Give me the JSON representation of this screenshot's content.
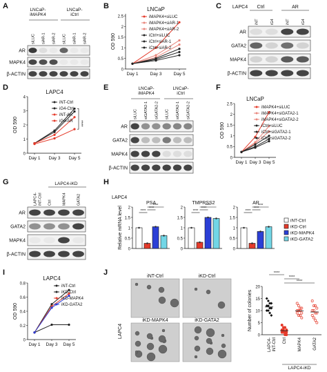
{
  "panel_letters": [
    "A",
    "B",
    "C",
    "D",
    "E",
    "F",
    "G",
    "H",
    "I",
    "J"
  ],
  "blot_labels": {
    "beta_actin": "β-ACTIN",
    "AR": "AR",
    "MAPK4": "MAPK4",
    "GATA2": "GATA2"
  },
  "panel_a": {
    "groups": [
      "LNCaP-\niMAPK4",
      "LNCaP-\niCtrl"
    ],
    "lanes": [
      "siLUC",
      "siAR-1",
      "siAR-2",
      "siLUC",
      "siAR-1",
      "siAR-2"
    ],
    "rows": [
      "AR",
      "MAPK4",
      "β-ACTIN"
    ]
  },
  "panel_c": {
    "cell": "LAPC4",
    "groups": [
      "Ctrl",
      "AR"
    ],
    "lanes": [
      "iNT",
      "iG4",
      "iNT",
      "iG4"
    ],
    "rows": [
      "AR",
      "GATA2",
      "MAPK4",
      "β-ACTIN"
    ]
  },
  "panel_e": {
    "groups": [
      "LNCaP-\niMAPK4",
      "LNCaP-\niCtrl"
    ],
    "lanes": [
      "siLUC",
      "siGATA2-1",
      "siGATA2-2",
      "siLUC",
      "siGATA2-1",
      "siGATA2-2"
    ],
    "rows": [
      "AR",
      "GATA2",
      "MAPK4",
      "β-ACTIN"
    ]
  },
  "panel_g": {
    "group": "LAPC4-iKD",
    "lanes": [
      "LAPC4-\niNT-Ctrl",
      "Ctrl",
      "MAPK4",
      "GATA2"
    ],
    "rows": [
      "AR",
      "GATA2",
      "MAPK4",
      "β-ACTIN"
    ]
  },
  "panel_j": {
    "images": [
      "iNT-Ctrl",
      "iKD-Ctrl",
      "iKD-MAPK4",
      "iKD-GATA2"
    ],
    "side_label": "LAPC4",
    "sig": [
      "****",
      "****",
      "****",
      "****"
    ]
  },
  "chart_data": [
    {
      "panel": "B",
      "type": "line",
      "title": "LNCaP",
      "ylabel": "OD 590",
      "categories": [
        "Day 1",
        "Day 3",
        "Day 5"
      ],
      "ylim": [
        0,
        2.6
      ],
      "yticks": [
        0,
        0.5,
        1.0,
        1.5,
        2.0,
        2.5
      ],
      "series": [
        {
          "name": "iMAPK4+siLUC",
          "color": "#e53a2a",
          "values": [
            0.25,
            1.0,
            2.2
          ]
        },
        {
          "name": "iMAPK4+siAR-1",
          "color": "#e8867c",
          "values": [
            0.25,
            0.65,
            1.35
          ]
        },
        {
          "name": "iMAPK4+siAR-2",
          "color": "#e8867c",
          "values": [
            0.25,
            0.55,
            1.15
          ]
        },
        {
          "name": "iCtrl+siLUC",
          "color": "#222222",
          "values": [
            0.25,
            0.5,
            0.95
          ]
        },
        {
          "name": "iCtrl+siAR-1",
          "color": "#222222",
          "values": [
            0.25,
            0.45,
            0.8
          ]
        },
        {
          "name": "iCtrl+siAR-2",
          "color": "#222222",
          "values": [
            0.25,
            0.4,
            0.65
          ]
        }
      ]
    },
    {
      "panel": "D",
      "type": "line",
      "title": "LAPC4",
      "ylabel": "OD 590",
      "categories": [
        "Day 1",
        "Day 3",
        "Day 5"
      ],
      "ylim": [
        0,
        4
      ],
      "yticks": [
        0,
        1,
        2,
        3,
        4
      ],
      "significance": "****",
      "series": [
        {
          "name": "iNT-Ctrl",
          "color": "#222222",
          "values": [
            0.7,
            1.6,
            3.15
          ]
        },
        {
          "name": "iG4-Ctrl",
          "color": "#222222",
          "values": [
            0.7,
            1.5,
            2.95
          ]
        },
        {
          "name": "iNT-AR",
          "color": "#e53a2a",
          "values": [
            0.7,
            1.3,
            2.55
          ]
        },
        {
          "name": "iG4-AR",
          "color": "#e53a2a",
          "values": [
            0.65,
            1.05,
            1.7
          ]
        }
      ]
    },
    {
      "panel": "F",
      "type": "line",
      "title": "LNCaP",
      "ylabel": "OD 590",
      "categories": [
        "Day 1",
        "Day 3",
        "Day 5"
      ],
      "ylim": [
        0,
        2.5
      ],
      "yticks": [
        0,
        0.5,
        1.0,
        1.5,
        2.0,
        2.5
      ],
      "series": [
        {
          "name": "iMAPK4+siLUC",
          "color": "#e53a2a",
          "values": [
            0.25,
            0.95,
            2.1
          ]
        },
        {
          "name": "iMAPK4+siGATA2-1",
          "color": "#e8867c",
          "values": [
            0.25,
            0.7,
            1.45
          ]
        },
        {
          "name": "iMAPK4+siGATA2-2",
          "color": "#e8867c",
          "values": [
            0.25,
            0.65,
            1.2
          ]
        },
        {
          "name": "iCtrl+siLUC",
          "color": "#222222",
          "values": [
            0.25,
            0.6,
            1.0
          ]
        },
        {
          "name": "iCtrl+siGATA2-1",
          "color": "#222222",
          "values": [
            0.25,
            0.5,
            0.85
          ]
        },
        {
          "name": "iCtrl+siGATA2-2",
          "color": "#222222",
          "values": [
            0.25,
            0.45,
            0.75
          ]
        }
      ]
    },
    {
      "panel": "H",
      "type": "bar",
      "title": "LAPC4",
      "ylabel": "Relative mRNA level",
      "ylim": [
        0,
        2.0
      ],
      "yticks": [
        0,
        0.5,
        1.0,
        1.5,
        2.0
      ],
      "groups": [
        "PSA",
        "TMPRSS2",
        "AR"
      ],
      "series": [
        {
          "name": "iNT-Ctrl",
          "color": "#ffffff",
          "values": [
            1.0,
            1.0,
            1.0
          ]
        },
        {
          "name": "iKD-Ctrl",
          "color": "#e53a2a",
          "values": [
            0.25,
            0.3,
            0.25
          ]
        },
        {
          "name": "iKD-MAPK4",
          "color": "#2b3fd6",
          "values": [
            1.05,
            1.5,
            0.82
          ]
        },
        {
          "name": "iKD-GATA2",
          "color": "#72d6e6",
          "values": [
            0.62,
            1.45,
            1.05
          ]
        }
      ],
      "significance": "****"
    },
    {
      "panel": "I",
      "type": "line",
      "title": "LAPC4",
      "ylabel": "OD 590",
      "categories": [
        "Day 1",
        "Day 3",
        "Day 5"
      ],
      "ylim": [
        0,
        0.8
      ],
      "yticks": [
        0.0,
        0.2,
        0.4,
        0.6,
        0.8
      ],
      "series": [
        {
          "name": "iNT-Ctrl",
          "color": "#222222",
          "values": [
            0.1,
            0.5,
            0.7
          ]
        },
        {
          "name": "iKD-Ctrl",
          "color": "#222222",
          "values": [
            0.1,
            0.21,
            0.21
          ]
        },
        {
          "name": "iKD-MAPK4",
          "color": "#e53a2a",
          "values": [
            0.1,
            0.47,
            0.65
          ]
        },
        {
          "name": "iKD-GATA2",
          "color": "#2b3fd6",
          "values": [
            0.1,
            0.45,
            0.62
          ]
        }
      ]
    },
    {
      "panel": "J",
      "type": "scatter",
      "ylabel": "Number of colonies",
      "ylim": [
        0,
        20
      ],
      "yticks": [
        0,
        5,
        10,
        15,
        20
      ],
      "categories": [
        "LAPC4-\niNT-Ctrl",
        "Ctrl",
        "MAPK4",
        "GATA2"
      ],
      "xgroup": "LAPC4-iKD",
      "series": [
        {
          "name": "LAPC4-iNT-Ctrl",
          "color": "#111111",
          "values": [
            15,
            14,
            13,
            13,
            12,
            12,
            11,
            11,
            10,
            10,
            9,
            8
          ]
        },
        {
          "name": "Ctrl",
          "color": "#e53a2a",
          "values": [
            4,
            3,
            3,
            2,
            2,
            2,
            1,
            1,
            1,
            1,
            0,
            0
          ]
        },
        {
          "name": "MAPK4",
          "color": "#e53a2a",
          "values": [
            13,
            12,
            11,
            11,
            10,
            10,
            10,
            9,
            9,
            8,
            8,
            7
          ]
        },
        {
          "name": "GATA2",
          "color": "#e53a2a",
          "values": [
            14,
            12,
            12,
            11,
            10,
            10,
            9,
            9,
            8,
            7,
            6,
            5
          ]
        }
      ]
    }
  ]
}
